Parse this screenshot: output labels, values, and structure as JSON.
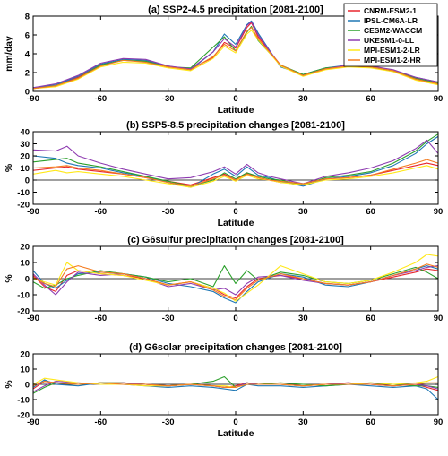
{
  "colors": {
    "CNRM-ESM2-1": "#e8262d",
    "IPSL-CM6A-LR": "#1f77b4",
    "CESM2-WACCM": "#2ca02c",
    "UKESM1-0-LL": "#8e3bb0",
    "MPI-ESM1-2-LR": "#ffe81a",
    "MPI-ESM1-2-HR": "#f47c20"
  },
  "chart_data": [
    {
      "type": "line",
      "title": "(a) SSP2-4.5 precipitation [2081-2100]",
      "xlabel": "Latitude",
      "ylabel": "mm/day",
      "xlim": [
        -90,
        90
      ],
      "ylim": [
        0,
        8
      ],
      "xticks": [
        -90,
        -60,
        -30,
        0,
        30,
        60,
        90
      ],
      "yticks": [
        0,
        2,
        4,
        6,
        8
      ],
      "legend": "top-right",
      "zero_line": false,
      "x": [
        -90,
        -80,
        -70,
        -60,
        -50,
        -40,
        -30,
        -20,
        -10,
        -5,
        0,
        5,
        7,
        10,
        20,
        30,
        40,
        50,
        60,
        70,
        80,
        90
      ],
      "series": [
        {
          "name": "CNRM-ESM2-1",
          "values": [
            0.3,
            0.6,
            1.5,
            2.8,
            3.3,
            3.2,
            2.6,
            2.4,
            3.6,
            5.2,
            4.6,
            6.8,
            7.3,
            5.8,
            2.8,
            1.7,
            2.4,
            2.7,
            2.6,
            2.2,
            1.3,
            0.8
          ]
        },
        {
          "name": "IPSL-CM6A-LR",
          "values": [
            0.4,
            0.7,
            1.6,
            2.9,
            3.4,
            3.3,
            2.7,
            2.3,
            4.2,
            6.1,
            5.0,
            7.1,
            7.5,
            6.2,
            2.6,
            1.8,
            2.5,
            2.8,
            2.6,
            2.1,
            1.5,
            1.0
          ]
        },
        {
          "name": "CESM2-WACCM",
          "values": [
            0.3,
            0.6,
            1.4,
            2.8,
            3.3,
            3.2,
            2.6,
            2.5,
            4.7,
            5.8,
            4.3,
            6.3,
            6.9,
            5.4,
            2.8,
            1.8,
            2.5,
            2.7,
            2.6,
            2.2,
            1.4,
            0.9
          ]
        },
        {
          "name": "UKESM1-0-LL",
          "values": [
            0.4,
            0.8,
            1.7,
            3.0,
            3.5,
            3.4,
            2.7,
            2.4,
            4.2,
            5.6,
            4.7,
            7.0,
            7.4,
            6.0,
            2.7,
            1.7,
            2.4,
            2.8,
            2.7,
            2.3,
            1.5,
            1.0
          ]
        },
        {
          "name": "MPI-ESM1-2-LR",
          "values": [
            0.3,
            0.5,
            1.3,
            2.6,
            3.1,
            3.0,
            2.5,
            2.2,
            3.5,
            4.8,
            4.1,
            6.1,
            6.5,
            5.5,
            2.7,
            1.6,
            2.3,
            2.6,
            2.5,
            2.1,
            1.2,
            0.7
          ]
        },
        {
          "name": "MPI-ESM1-2-HR",
          "values": [
            0.3,
            0.6,
            1.4,
            2.7,
            3.3,
            3.1,
            2.6,
            2.3,
            3.7,
            5.0,
            4.3,
            6.4,
            6.8,
            5.6,
            2.8,
            1.7,
            2.4,
            2.7,
            2.6,
            2.2,
            1.3,
            0.8
          ]
        }
      ]
    },
    {
      "type": "line",
      "title": "(b) SSP5-8.5 precipitation changes [2081-2100]",
      "xlabel": "Latitude",
      "ylabel": "%",
      "xlim": [
        -90,
        90
      ],
      "ylim": [
        -20,
        40
      ],
      "xticks": [
        -90,
        -60,
        -30,
        0,
        30,
        60,
        90
      ],
      "yticks": [
        -20,
        -10,
        0,
        10,
        20,
        30,
        40
      ],
      "zero_line": true,
      "x": [
        -90,
        -80,
        -75,
        -70,
        -60,
        -50,
        -40,
        -30,
        -20,
        -10,
        -5,
        0,
        5,
        10,
        15,
        20,
        30,
        40,
        50,
        60,
        70,
        80,
        85,
        90
      ],
      "series": [
        {
          "name": "CNRM-ESM2-1",
          "values": [
            8,
            10,
            11,
            9,
            7,
            5,
            2,
            -1,
            -4,
            2,
            5,
            0,
            6,
            2,
            0,
            -2,
            -3,
            1,
            2,
            4,
            8,
            12,
            14,
            12
          ]
        },
        {
          "name": "IPSL-CM6A-LR",
          "values": [
            20,
            18,
            14,
            12,
            10,
            6,
            3,
            -2,
            -6,
            5,
            9,
            3,
            11,
            4,
            2,
            -1,
            -5,
            1,
            3,
            6,
            12,
            22,
            30,
            36
          ]
        },
        {
          "name": "CESM2-WACCM",
          "values": [
            15,
            17,
            18,
            14,
            11,
            7,
            3,
            -1,
            -5,
            0,
            6,
            1,
            6,
            3,
            1,
            0,
            -4,
            2,
            4,
            7,
            14,
            24,
            32,
            38
          ]
        },
        {
          "name": "UKESM1-0-LL",
          "values": [
            25,
            24,
            28,
            20,
            14,
            9,
            5,
            1,
            2,
            7,
            11,
            5,
            13,
            6,
            3,
            1,
            -3,
            3,
            6,
            10,
            16,
            26,
            33,
            22
          ]
        },
        {
          "name": "MPI-ESM1-2-LR",
          "values": [
            5,
            8,
            6,
            7,
            5,
            3,
            0,
            -3,
            -6,
            -1,
            3,
            -1,
            4,
            1,
            0,
            -2,
            -4,
            0,
            1,
            3,
            6,
            10,
            12,
            9
          ]
        },
        {
          "name": "MPI-ESM1-2-HR",
          "values": [
            10,
            11,
            12,
            10,
            8,
            5,
            2,
            -2,
            -5,
            1,
            4,
            0,
            5,
            2,
            0,
            -1,
            -3,
            1,
            2,
            4,
            9,
            14,
            17,
            14
          ]
        }
      ]
    },
    {
      "type": "line",
      "title": "(c) G6sulfur precipitation changes [2081-2100]",
      "xlabel": "Latitude",
      "ylabel": "%",
      "xlim": [
        -90,
        90
      ],
      "ylim": [
        -20,
        20
      ],
      "xticks": [
        -90,
        -60,
        -30,
        0,
        30,
        60,
        90
      ],
      "yticks": [
        -20,
        -10,
        0,
        10,
        20
      ],
      "zero_line": true,
      "x": [
        -90,
        -85,
        -80,
        -75,
        -70,
        -60,
        -50,
        -40,
        -30,
        -20,
        -10,
        -5,
        0,
        5,
        10,
        20,
        30,
        40,
        50,
        60,
        70,
        80,
        85,
        90
      ],
      "series": [
        {
          "name": "CNRM-ESM2-1",
          "values": [
            2,
            -5,
            -8,
            2,
            5,
            3,
            2,
            0,
            -4,
            -2,
            -6,
            -10,
            -12,
            -5,
            0,
            2,
            0,
            -3,
            -4,
            -2,
            1,
            4,
            6,
            5
          ]
        },
        {
          "name": "IPSL-CM6A-LR",
          "values": [
            5,
            -3,
            -6,
            -1,
            3,
            4,
            3,
            1,
            -3,
            -5,
            -8,
            -12,
            -15,
            -8,
            -2,
            3,
            1,
            -4,
            -5,
            -2,
            2,
            6,
            8,
            6
          ]
        },
        {
          "name": "CESM2-WACCM",
          "values": [
            -2,
            -6,
            -4,
            0,
            2,
            5,
            3,
            1,
            -2,
            0,
            -5,
            8,
            -3,
            5,
            -1,
            4,
            2,
            -2,
            -3,
            -1,
            3,
            7,
            4,
            0
          ]
        },
        {
          "name": "UKESM1-0-LL",
          "values": [
            3,
            -4,
            -10,
            -2,
            4,
            2,
            3,
            0,
            -5,
            -3,
            -7,
            -6,
            -10,
            -3,
            1,
            2,
            -1,
            -3,
            -4,
            -2,
            2,
            5,
            7,
            8
          ]
        },
        {
          "name": "MPI-ESM1-2-LR",
          "values": [
            0,
            -2,
            -4,
            10,
            5,
            3,
            2,
            -1,
            -4,
            -2,
            -6,
            -9,
            -14,
            -9,
            -4,
            8,
            3,
            -2,
            -3,
            -1,
            4,
            10,
            15,
            14
          ]
        },
        {
          "name": "MPI-ESM1-2-HR",
          "values": [
            1,
            -3,
            -5,
            6,
            8,
            4,
            3,
            0,
            -4,
            -2,
            -7,
            -11,
            -13,
            -6,
            -1,
            3,
            0,
            -3,
            -4,
            -2,
            2,
            6,
            9,
            7
          ]
        }
      ]
    },
    {
      "type": "line",
      "title": "(d) G6solar precipitation changes [2081-2100]",
      "xlabel": "Latitude",
      "ylabel": "%",
      "xlim": [
        -90,
        90
      ],
      "ylim": [
        -20,
        20
      ],
      "xticks": [
        -90,
        -60,
        -30,
        0,
        30,
        60,
        90
      ],
      "yticks": [
        -20,
        -10,
        0,
        10,
        20
      ],
      "zero_line": true,
      "x": [
        -90,
        -85,
        -80,
        -70,
        -60,
        -50,
        -40,
        -30,
        -20,
        -10,
        -5,
        0,
        5,
        10,
        20,
        30,
        40,
        50,
        60,
        70,
        80,
        85,
        90
      ],
      "series": [
        {
          "name": "CNRM-ESM2-1",
          "values": [
            -3,
            2,
            1,
            0,
            1,
            1,
            0,
            -1,
            0,
            -1,
            -2,
            -1,
            1,
            0,
            0,
            -1,
            0,
            1,
            0,
            -1,
            0,
            -2,
            -4
          ]
        },
        {
          "name": "IPSL-CM6A-LR",
          "values": [
            -2,
            3,
            0,
            -1,
            1,
            0,
            -1,
            -2,
            -1,
            -2,
            -3,
            -4,
            0,
            -1,
            -1,
            -2,
            -1,
            0,
            -1,
            -2,
            -1,
            -3,
            -10
          ]
        },
        {
          "name": "CESM2-WACCM",
          "values": [
            -6,
            -2,
            1,
            0,
            1,
            1,
            0,
            -1,
            0,
            2,
            5,
            -2,
            1,
            0,
            1,
            0,
            -1,
            0,
            1,
            0,
            -1,
            -1,
            -2
          ]
        },
        {
          "name": "UKESM1-0-LL",
          "values": [
            -5,
            -1,
            2,
            1,
            0,
            1,
            0,
            -1,
            0,
            -1,
            -2,
            -2,
            1,
            0,
            0,
            -1,
            0,
            1,
            0,
            -1,
            0,
            -1,
            -3
          ]
        },
        {
          "name": "MPI-ESM1-2-LR",
          "values": [
            0,
            4,
            3,
            1,
            0,
            0,
            -1,
            -1,
            0,
            -1,
            -1,
            -2,
            0,
            0,
            0,
            -1,
            0,
            0,
            1,
            0,
            1,
            2,
            5
          ]
        },
        {
          "name": "MPI-ESM1-2-HR",
          "values": [
            -1,
            2,
            1,
            0,
            1,
            0,
            0,
            -1,
            0,
            -1,
            -2,
            -2,
            0,
            0,
            0,
            -1,
            0,
            0,
            0,
            -1,
            0,
            1,
            1
          ]
        }
      ]
    }
  ]
}
